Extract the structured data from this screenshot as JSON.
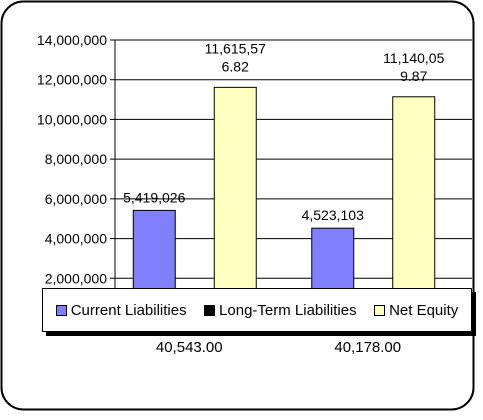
{
  "chart_data": {
    "type": "bar",
    "categories": [
      "40,543.00",
      "40,178.00"
    ],
    "series": [
      {
        "name": "Current Liabilities",
        "color": "#8080ff",
        "values": [
          5419026,
          4523103
        ],
        "labels": [
          "5,419,026",
          "4,523,103"
        ]
      },
      {
        "name": "Long-Term Liabilities",
        "color": "#000000",
        "values": [
          0,
          0
        ],
        "labels": [
          "",
          ""
        ]
      },
      {
        "name": "Net Equity",
        "color": "#ffffc0",
        "values": [
          11615576.82,
          11140059.87
        ],
        "labels": [
          "11,615,576.82",
          "11,140,059.87"
        ]
      }
    ],
    "ylim": [
      0,
      14000000
    ],
    "yticks": [
      "14,000,000",
      "12,000,000",
      "10,000,000",
      "8,000,000",
      "6,000,000",
      "4,000,000",
      "2,000,000"
    ],
    "ytick_values": [
      14000000,
      12000000,
      10000000,
      8000000,
      6000000,
      4000000,
      2000000
    ],
    "grid": true,
    "legend_position": "bottom",
    "title": "",
    "xlabel": "",
    "ylabel": ""
  }
}
